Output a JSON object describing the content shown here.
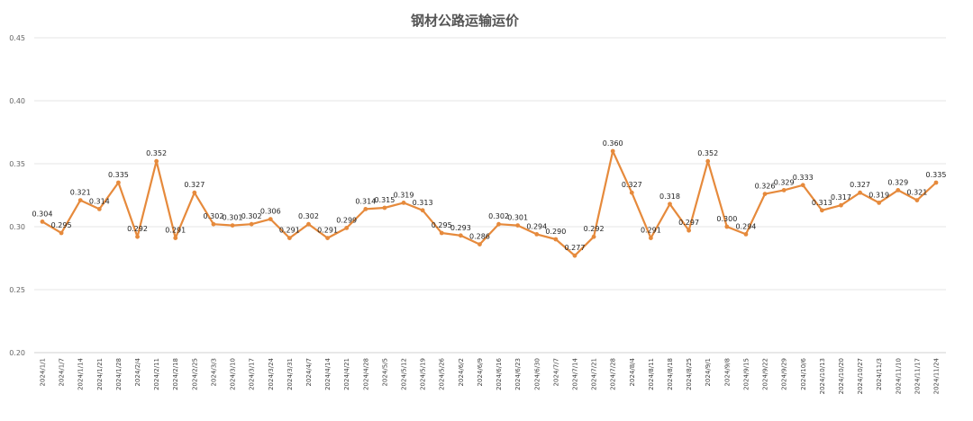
{
  "chart_data": {
    "type": "line",
    "title": "钢材公路运输运价",
    "xlabel": "",
    "ylabel": "",
    "ylim": [
      0.2,
      0.45
    ],
    "yticks": [
      "0.20",
      "0.25",
      "0.30",
      "0.35",
      "0.40",
      "0.45"
    ],
    "grid": true,
    "legend": "none",
    "line_color": "#E68A3C",
    "categories": [
      "2024/1/1",
      "2024/1/7",
      "2024/1/14",
      "2024/1/21",
      "2024/1/28",
      "2024/2/4",
      "2024/2/11",
      "2024/2/18",
      "2024/2/25",
      "2024/3/3",
      "2024/3/10",
      "2024/3/17",
      "2024/3/24",
      "2024/3/31",
      "2024/4/7",
      "2024/4/14",
      "2024/4/21",
      "2024/4/28",
      "2024/5/5",
      "2024/5/12",
      "2024/5/19",
      "2024/5/26",
      "2024/6/2",
      "2024/6/9",
      "2024/6/16",
      "2024/6/23",
      "2024/6/30",
      "2024/7/7",
      "2024/7/14",
      "2024/7/21",
      "2024/7/28",
      "2024/8/4",
      "2024/8/11",
      "2024/8/18",
      "2024/8/25",
      "2024/9/1",
      "2024/9/8",
      "2024/9/15",
      "2024/9/22",
      "2024/9/29",
      "2024/10/6",
      "2024/10/13",
      "2024/10/20",
      "2024/10/27",
      "2024/11/3",
      "2024/11/10",
      "2024/11/17",
      "2024/11/24"
    ],
    "values": [
      0.304,
      0.295,
      0.321,
      0.314,
      0.335,
      0.292,
      0.352,
      0.291,
      0.327,
      0.302,
      0.301,
      0.302,
      0.306,
      0.291,
      0.302,
      0.291,
      0.299,
      0.314,
      0.315,
      0.319,
      0.313,
      0.295,
      0.293,
      0.286,
      0.302,
      0.301,
      0.294,
      0.29,
      0.277,
      0.292,
      0.36,
      0.327,
      0.291,
      0.318,
      0.297,
      0.352,
      0.3,
      0.294,
      0.326,
      0.329,
      0.333,
      0.313,
      0.317,
      0.327,
      0.319,
      0.329,
      0.321,
      0.335
    ],
    "value_labels": [
      "0.304",
      "0.295",
      "0.321",
      "0.314",
      "0.335",
      "0.292",
      "0.352",
      "0.291",
      "0.327",
      "0.302",
      "0.301",
      "0.302",
      "0.306",
      "0.291",
      "0.302",
      "0.291",
      "0.299",
      "0.314",
      "0.315",
      "0.319",
      "0.313",
      "0.295",
      "0.293",
      "0.286",
      "0.302",
      "0.301",
      "0.294",
      "0.290",
      "0.277",
      "0.292",
      "0.360",
      "0.327",
      "0.291",
      "0.318",
      "0.297",
      "0.352",
      "0.300",
      "0.294",
      "0.326",
      "0.329",
      "0.333",
      "0.313",
      "0.317",
      "0.327",
      "0.319",
      "0.329",
      "0.321",
      "0.335"
    ]
  }
}
